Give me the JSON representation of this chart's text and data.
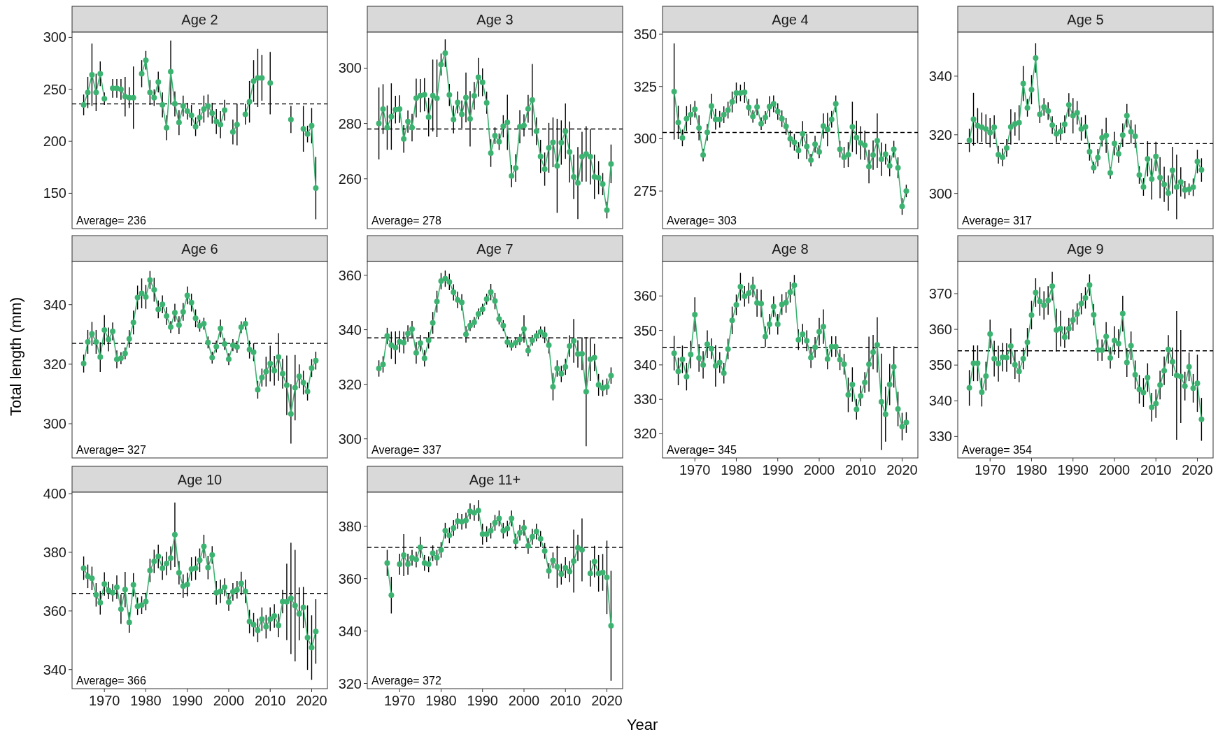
{
  "chart_data": [
    {
      "type": "line",
      "title": "Age 2",
      "color": "#3cb371",
      "marker": "circle",
      "tick_labels": "y",
      "xlim": [
        1962.2,
        2023.8
      ],
      "ylim": [
        116,
        305
      ],
      "yticks": [
        150,
        200,
        250,
        300
      ],
      "ref_lines": [
        {
          "axis": "y",
          "value": 236,
          "color": "#000000",
          "line_style": "dashed"
        }
      ],
      "annotations": [
        "Average= 236"
      ],
      "x": [
        1965,
        1966,
        1967,
        1968,
        1969,
        1970,
        1971,
        1972,
        1973,
        1974,
        1975,
        1976,
        1977,
        1978,
        1979,
        1980,
        1981,
        1982,
        1983,
        1984,
        1985,
        1986,
        1987,
        1988,
        1989,
        1990,
        1991,
        1992,
        1993,
        1994,
        1995,
        1996,
        1997,
        1998,
        1999,
        2000,
        2001,
        2002,
        2003,
        2004,
        2005,
        2006,
        2007,
        2008,
        2009,
        2010,
        2011,
        2012,
        2013,
        2014,
        2015,
        2016,
        2017,
        2018,
        2019,
        2020,
        2021
      ],
      "values": [
        235,
        247,
        264,
        247,
        265,
        241,
        null,
        251,
        251,
        250,
        243,
        242,
        242,
        null,
        265,
        278,
        247,
        242,
        257,
        235,
        213,
        267,
        236,
        218,
        234,
        229,
        225,
        214,
        223,
        231,
        234,
        227,
        219,
        216,
        230,
        null,
        209,
        216,
        null,
        226,
        238,
        258,
        261,
        261,
        null,
        256,
        null,
        null,
        null,
        null,
        221,
        null,
        null,
        212,
        207,
        215,
        155
      ],
      "errors": [
        10,
        15,
        30,
        18,
        12,
        6,
        null,
        9,
        9,
        10,
        19,
        10,
        30,
        null,
        13,
        9,
        12,
        8,
        10,
        12,
        12,
        30,
        12,
        12,
        10,
        8,
        10,
        9,
        8,
        13,
        11,
        10,
        12,
        13,
        10,
        null,
        12,
        20,
        null,
        10,
        20,
        20,
        28,
        22,
        null,
        30,
        null,
        null,
        null,
        null,
        13,
        null,
        null,
        22,
        8,
        17,
        30
      ]
    },
    {
      "type": "line",
      "title": "Age 3",
      "color": "#3cb371",
      "marker": "circle",
      "tick_labels": "y",
      "xlim": [
        1962.2,
        2023.8
      ],
      "ylim": [
        242,
        313
      ],
      "yticks": [
        260,
        280,
        300
      ],
      "ref_lines": [
        {
          "axis": "y",
          "value": 278,
          "color": "#000000",
          "line_style": "dashed"
        }
      ],
      "annotations": [
        "Average= 278"
      ],
      "x": [
        1965,
        1966,
        1967,
        1968,
        1969,
        1970,
        1971,
        1972,
        1973,
        1974,
        1975,
        1976,
        1977,
        1978,
        1979,
        1980,
        1981,
        1982,
        1983,
        1984,
        1985,
        1986,
        1987,
        1988,
        1989,
        1990,
        1991,
        1992,
        1993,
        1994,
        1995,
        1996,
        1997,
        1998,
        1999,
        2000,
        2001,
        2002,
        2003,
        2004,
        2005,
        2006,
        2007,
        2008,
        2009,
        2010,
        2011,
        2012,
        2013,
        2014,
        2015,
        2016,
        2017,
        2018,
        2019,
        2020,
        2021
      ],
      "values": [
        280,
        285.2,
        278.5,
        282.5,
        285,
        285.2,
        274.4,
        280.7,
        278.5,
        289.2,
        290.1,
        290.4,
        282.3,
        290.1,
        289.1,
        301.3,
        305.4,
        290.3,
        281.4,
        287.6,
        283.3,
        289.4,
        281.7,
        290,
        296.7,
        294.9,
        287.5,
        269.3,
        275.6,
        273.4,
        279,
        280.4,
        261,
        263.9,
        278.8,
        279.3,
        285.3,
        288.5,
        277.2,
        268.1,
        263.5,
        271.2,
        273.2,
        264.7,
        273.1,
        277.2,
        269.7,
        260.7,
        258.5,
        268,
        269,
        268,
        260.7,
        260.4,
        258.1,
        248.7,
        265.4
      ],
      "errors": [
        13,
        9,
        8,
        12,
        5,
        5,
        5,
        4,
        5,
        7,
        6,
        6,
        7,
        13,
        14,
        4,
        5,
        4,
        5,
        4,
        5,
        9,
        10,
        5,
        7,
        5,
        4,
        5,
        3,
        3,
        4,
        10,
        4,
        5,
        6,
        4,
        5,
        13,
        5,
        6,
        6,
        9,
        9,
        17,
        8,
        10,
        11,
        8,
        13,
        9,
        10,
        10,
        8,
        6,
        4,
        3,
        7
      ]
    },
    {
      "type": "line",
      "title": "Age 4",
      "color": "#3cb371",
      "marker": "circle",
      "tick_labels": "y",
      "xlim": [
        1962.2,
        2023.8
      ],
      "ylim": [
        257,
        351
      ],
      "yticks": [
        275,
        300,
        325,
        350
      ],
      "ref_lines": [
        {
          "axis": "y",
          "value": 303,
          "color": "#000000",
          "line_style": "dashed"
        }
      ],
      "annotations": [
        "Average= 303"
      ],
      "x": [
        1965,
        1966,
        1967,
        1968,
        1969,
        1970,
        1971,
        1972,
        1973,
        1974,
        1975,
        1976,
        1977,
        1978,
        1979,
        1980,
        1981,
        1982,
        1983,
        1984,
        1985,
        1986,
        1987,
        1988,
        1989,
        1990,
        1991,
        1992,
        1993,
        1994,
        1995,
        1996,
        1997,
        1998,
        1999,
        2000,
        2001,
        2002,
        2003,
        2004,
        2005,
        2006,
        2007,
        2008,
        2009,
        2010,
        2011,
        2012,
        2013,
        2014,
        2015,
        2016,
        2017,
        2018,
        2019,
        2020,
        2021
      ],
      "values": [
        322.6,
        307.8,
        300.4,
        309.6,
        311.5,
        314.1,
        305.2,
        292.2,
        303.1,
        315.6,
        309.3,
        309.3,
        311.5,
        313.7,
        317.6,
        321.9,
        321.9,
        322.2,
        315,
        310.7,
        315.2,
        307.2,
        310.2,
        315.4,
        316.7,
        313,
        309.6,
        305.9,
        300,
        298.3,
        294.4,
        302.4,
        296.3,
        289.8,
        297.4,
        293.7,
        306.1,
        304.4,
        309.3,
        316.7,
        295,
        291.1,
        292.4,
        305.7,
        300.6,
        298,
        296.9,
        286.7,
        292.2,
        299.1,
        290.2,
        292.6,
        287,
        295,
        286.1,
        267.6,
        275
      ],
      "errors": [
        23,
        8,
        4,
        6,
        5,
        4,
        6,
        3,
        4,
        6,
        5,
        4,
        4,
        4,
        5,
        5,
        4,
        5,
        4,
        3,
        4,
        3,
        3,
        5,
        4,
        4,
        4,
        4,
        4,
        4,
        4,
        6,
        6,
        3,
        4,
        3,
        6,
        8,
        4,
        4,
        4,
        5,
        6,
        12,
        8,
        8,
        7,
        8,
        7,
        13,
        8,
        5,
        5,
        4,
        5,
        4,
        3
      ]
    },
    {
      "type": "line",
      "title": "Age 5",
      "color": "#3cb371",
      "marker": "circle",
      "tick_labels": "y",
      "xlim": [
        1962.2,
        2023.8
      ],
      "ylim": [
        288,
        355
      ],
      "yticks": [
        300,
        320,
        340
      ],
      "ref_lines": [
        {
          "axis": "y",
          "value": 317,
          "color": "#000000",
          "line_style": "dashed"
        }
      ],
      "annotations": [
        "Average= 317"
      ],
      "x": [
        1965,
        1966,
        1967,
        1968,
        1969,
        1970,
        1971,
        1972,
        1973,
        1974,
        1975,
        1976,
        1977,
        1978,
        1979,
        1980,
        1981,
        1982,
        1983,
        1984,
        1985,
        1986,
        1987,
        1988,
        1989,
        1990,
        1991,
        1992,
        1993,
        1994,
        1995,
        1996,
        1997,
        1998,
        1999,
        2000,
        2001,
        2002,
        2003,
        2004,
        2005,
        2006,
        2007,
        2008,
        2009,
        2010,
        2011,
        2012,
        2013,
        2014,
        2015,
        2016,
        2017,
        2018,
        2019,
        2020,
        2021
      ],
      "values": [
        318.1,
        325.3,
        323.1,
        322.6,
        322,
        320.7,
        322.6,
        313.2,
        312.3,
        315.5,
        322.7,
        323.7,
        324.1,
        337.5,
        329.2,
        335.4,
        346.2,
        327,
        329.5,
        328.1,
        323.3,
        320.3,
        321.1,
        323.6,
        330.2,
        326.5,
        327.5,
        322,
        322.7,
        314.2,
        308.8,
        312.2,
        319,
        319.8,
        307,
        317,
        313.5,
        319.9,
        326.5,
        321,
        319.5,
        306.3,
        302.2,
        311.8,
        304.9,
        312.6,
        305.4,
        303.1,
        300.1,
        307.9,
        302.2,
        303.9,
        301.2,
        301.4,
        302.1,
        310.9,
        308
      ],
      "errors": [
        4,
        9,
        6,
        5,
        5,
        5,
        4,
        3,
        3,
        3,
        6,
        4,
        6,
        6,
        3,
        5,
        5,
        3,
        3,
        3,
        3,
        3,
        3,
        3,
        4,
        6,
        4,
        4,
        4,
        3,
        2,
        3,
        3,
        6,
        2,
        4,
        3,
        4,
        4,
        4,
        4,
        3,
        3,
        6,
        7,
        5,
        7,
        6,
        6,
        8,
        11,
        5,
        3,
        2,
        3,
        4,
        4
      ]
    },
    {
      "type": "line",
      "title": "Age 6",
      "ylabel": "Total length (mm)",
      "color": "#3cb371",
      "marker": "circle",
      "tick_labels": "y",
      "xlim": [
        1962.2,
        2023.8
      ],
      "ylim": [
        288.5,
        354.5
      ],
      "yticks": [
        300,
        320,
        340
      ],
      "ref_lines": [
        {
          "axis": "y",
          "value": 327,
          "color": "#000000",
          "line_style": "dashed"
        }
      ],
      "annotations": [
        "Average= 327"
      ],
      "x": [
        1965,
        1966,
        1967,
        1968,
        1969,
        1970,
        1971,
        1972,
        1973,
        1974,
        1975,
        1976,
        1977,
        1978,
        1979,
        1980,
        1981,
        1982,
        1983,
        1984,
        1985,
        1986,
        1987,
        1988,
        1989,
        1990,
        1991,
        1992,
        1993,
        1994,
        1995,
        1996,
        1997,
        1998,
        1999,
        2000,
        2001,
        2002,
        2003,
        2004,
        2005,
        2006,
        2007,
        2008,
        2009,
        2010,
        2011,
        2012,
        2013,
        2014,
        2015,
        2016,
        2017,
        2018,
        2019,
        2020,
        2021
      ],
      "values": [
        320.2,
        327.5,
        330.2,
        327.5,
        322.4,
        331.5,
        328.3,
        331,
        321.6,
        322,
        323.6,
        328.5,
        334,
        342.4,
        343.8,
        342.6,
        348.3,
        345,
        338.4,
        340.1,
        336.2,
        332.5,
        337.3,
        333.1,
        337.6,
        343.1,
        340.7,
        335.4,
        332.9,
        333.6,
        327.3,
        322.2,
        325.9,
        332,
        326.8,
        321.7,
        326.4,
        325.8,
        332.4,
        333.6,
        324.9,
        324,
        311.4,
        315.5,
        317.5,
        320.2,
        317.8,
        322.4,
        316.8,
        312.9,
        303.3,
        312.1,
        315.9,
        313.8,
        310.8,
        318.7,
        321.2
      ],
      "errors": [
        3,
        4,
        4,
        4,
        5,
        5,
        4,
        3,
        3,
        2,
        2,
        3,
        4,
        4,
        5,
        4,
        3,
        4,
        3,
        3,
        3,
        2,
        3,
        3,
        3,
        3,
        3,
        3,
        2,
        2,
        2,
        2,
        2,
        3,
        2,
        2,
        2,
        2,
        2,
        2,
        3,
        3,
        3,
        3,
        5,
        6,
        5,
        8,
        5,
        10,
        10,
        11,
        4,
        4,
        3,
        3,
        3
      ]
    },
    {
      "type": "line",
      "title": "Age 7",
      "color": "#3cb371",
      "marker": "circle",
      "tick_labels": "y",
      "xlim": [
        1962.2,
        2023.8
      ],
      "ylim": [
        293,
        365
      ],
      "yticks": [
        300,
        320,
        340,
        360
      ],
      "ref_lines": [
        {
          "axis": "y",
          "value": 337,
          "color": "#000000",
          "line_style": "dashed"
        }
      ],
      "annotations": [
        "Average= 337"
      ],
      "x": [
        1965,
        1966,
        1967,
        1968,
        1969,
        1970,
        1971,
        1972,
        1973,
        1974,
        1975,
        1976,
        1977,
        1978,
        1979,
        1980,
        1981,
        1982,
        1983,
        1984,
        1985,
        1986,
        1987,
        1988,
        1989,
        1990,
        1991,
        1992,
        1993,
        1994,
        1995,
        1996,
        1997,
        1998,
        1999,
        2000,
        2001,
        2002,
        2003,
        2004,
        2005,
        2006,
        2007,
        2008,
        2009,
        2010,
        2011,
        2012,
        2013,
        2014,
        2015,
        2016,
        2017,
        2018,
        2019,
        2020,
        2021
      ],
      "values": [
        325.8,
        327.3,
        337.7,
        334.3,
        333.4,
        335.6,
        335.3,
        338.6,
        340.2,
        331.5,
        335.1,
        329.5,
        336.1,
        342.5,
        350.3,
        357.8,
        358.7,
        357.5,
        353.7,
        350.9,
        350,
        338.3,
        341.5,
        342.7,
        345.8,
        347.5,
        351.2,
        353.8,
        350.5,
        343.9,
        341.5,
        335.5,
        334.3,
        335.2,
        336.4,
        340.3,
        332.3,
        336.1,
        337.7,
        339.2,
        338.1,
        334.3,
        319.1,
        325.8,
        323.8,
        326.4,
        334,
        335.9,
        331.1,
        331.2,
        317.3,
        329.2,
        329.8,
        319.8,
        318.6,
        319.1,
        323.2
      ],
      "errors": [
        3,
        3,
        3,
        5,
        6,
        4,
        4,
        3,
        3,
        4,
        3,
        3,
        3,
        4,
        4,
        3,
        3,
        3,
        3,
        3,
        3,
        3,
        2,
        2,
        2,
        2,
        2,
        3,
        3,
        2,
        2,
        2,
        2,
        2,
        2,
        5,
        2,
        2,
        2,
        2,
        3,
        3,
        5,
        3,
        3,
        3,
        4,
        8,
        5,
        6,
        20,
        8,
        5,
        4,
        3,
        3,
        3
      ]
    },
    {
      "type": "line",
      "title": "Age 8",
      "color": "#3cb371",
      "marker": "circle",
      "xlim": [
        1962.2,
        2023.8
      ],
      "xticks": [
        1970,
        1980,
        1990,
        2000,
        2010,
        2020
      ],
      "ylim": [
        313,
        370
      ],
      "yticks": [
        320,
        330,
        340,
        350,
        360
      ],
      "ref_lines": [
        {
          "axis": "y",
          "value": 345,
          "color": "#000000",
          "line_style": "dashed"
        }
      ],
      "annotations": [
        "Average= 345"
      ],
      "x": [
        1965,
        1966,
        1967,
        1968,
        1969,
        1970,
        1971,
        1972,
        1973,
        1974,
        1975,
        1976,
        1977,
        1978,
        1979,
        1980,
        1981,
        1982,
        1983,
        1984,
        1985,
        1986,
        1987,
        1988,
        1989,
        1990,
        1991,
        1992,
        1993,
        1994,
        1995,
        1996,
        1997,
        1998,
        1999,
        2000,
        2001,
        2002,
        2003,
        2004,
        2005,
        2006,
        2007,
        2008,
        2009,
        2010,
        2011,
        2012,
        2013,
        2014,
        2015,
        2016,
        2017,
        2018,
        2019,
        2020,
        2021
      ],
      "values": [
        343.4,
        338.1,
        341.6,
        336.6,
        343,
        354.6,
        342,
        340,
        346,
        344.7,
        339.7,
        340.7,
        337.6,
        344.6,
        352.9,
        357.4,
        362.7,
        359.9,
        360.8,
        362.6,
        358,
        357.8,
        348.2,
        351.8,
        356.9,
        351.8,
        357.5,
        358.1,
        361.1,
        363.1,
        347.3,
        348.9,
        347,
        342.1,
        345.1,
        349.6,
        351.1,
        341.7,
        345.3,
        345.3,
        341.5,
        340.2,
        331.3,
        334.3,
        327.1,
        331,
        334.9,
        340.2,
        343.7,
        345.8,
        329.3,
        325.7,
        334.3,
        339.4,
        327.2,
        322.1,
        323.3
      ],
      "errors": [
        5,
        4,
        4,
        4,
        4,
        5,
        4,
        4,
        4,
        3,
        6,
        3,
        3,
        3,
        4,
        3,
        4,
        3,
        3,
        3,
        4,
        4,
        3,
        3,
        3,
        3,
        3,
        3,
        3,
        3,
        3,
        3,
        3,
        3,
        3,
        4,
        5,
        3,
        3,
        3,
        3,
        3,
        5,
        5,
        3,
        3,
        3,
        8,
        5,
        8,
        14,
        8,
        6,
        6,
        5,
        4,
        3
      ]
    },
    {
      "type": "line",
      "title": "Age 9",
      "color": "#3cb371",
      "marker": "circle",
      "xlim": [
        1962.2,
        2023.8
      ],
      "xticks": [
        1970,
        1980,
        1990,
        2000,
        2010,
        2020
      ],
      "ylim": [
        324,
        379
      ],
      "yticks": [
        330,
        340,
        350,
        360,
        370
      ],
      "ref_lines": [
        {
          "axis": "y",
          "value": 354,
          "color": "#000000",
          "line_style": "dashed"
        }
      ],
      "annotations": [
        "Average= 354"
      ],
      "x": [
        1965,
        1966,
        1967,
        1968,
        1969,
        1970,
        1971,
        1972,
        1973,
        1974,
        1975,
        1976,
        1977,
        1978,
        1979,
        1980,
        1981,
        1982,
        1983,
        1984,
        1985,
        1986,
        1987,
        1988,
        1989,
        1990,
        1991,
        1992,
        1993,
        1994,
        1995,
        1996,
        1997,
        1998,
        1999,
        2000,
        2001,
        2002,
        2003,
        2004,
        2005,
        2006,
        2007,
        2008,
        2009,
        2010,
        2011,
        2012,
        2013,
        2014,
        2015,
        2016,
        2017,
        2018,
        2019,
        2020,
        2021
      ],
      "values": [
        343.6,
        350.5,
        350.5,
        342.4,
        346.9,
        358.7,
        351.8,
        350.4,
        352.2,
        352.1,
        355.3,
        350.1,
        348.2,
        351.8,
        356.4,
        364,
        370.3,
        367.8,
        366.7,
        368.1,
        372.1,
        359.8,
        360.2,
        357.8,
        360.2,
        362.6,
        364.3,
        367.2,
        368.8,
        372.4,
        364.1,
        354.2,
        354.2,
        358,
        352,
        356.9,
        356,
        364.4,
        350.7,
        355.4,
        347.3,
        343.2,
        342.3,
        346.5,
        338.2,
        339.2,
        344.4,
        348.4,
        354.4,
        350.9,
        347.1,
        346.8,
        344.1,
        349.5,
        343.5,
        344.9,
        334.8
      ],
      "errors": [
        5,
        5,
        5,
        4,
        4,
        4,
        5,
        5,
        4,
        4,
        5,
        4,
        3,
        3,
        4,
        4,
        4,
        4,
        4,
        4,
        4,
        6,
        5,
        3,
        3,
        3,
        3,
        3,
        3,
        3,
        3,
        3,
        3,
        4,
        3,
        4,
        4,
        5,
        4,
        4,
        4,
        4,
        4,
        4,
        4,
        4,
        4,
        4,
        4,
        4,
        18,
        13,
        4,
        4,
        4,
        8,
        6
      ]
    },
    {
      "type": "line",
      "title": "Age 10",
      "color": "#3cb371",
      "marker": "circle",
      "xlim": [
        1962.2,
        2023.8
      ],
      "xticks": [
        1970,
        1980,
        1990,
        2000,
        2010,
        2020
      ],
      "ylim": [
        333.5,
        400.5
      ],
      "yticks": [
        340,
        360,
        380,
        400
      ],
      "ref_lines": [
        {
          "axis": "y",
          "value": 366,
          "color": "#000000",
          "line_style": "dashed"
        }
      ],
      "annotations": [
        "Average= 366"
      ],
      "x": [
        1965,
        1966,
        1967,
        1968,
        1969,
        1970,
        1971,
        1972,
        1973,
        1974,
        1975,
        1976,
        1977,
        1978,
        1979,
        1980,
        1981,
        1982,
        1983,
        1984,
        1985,
        1986,
        1987,
        1988,
        1989,
        1990,
        1991,
        1992,
        1993,
        1994,
        1995,
        1996,
        1997,
        1998,
        1999,
        2000,
        2001,
        2002,
        2003,
        2004,
        2005,
        2006,
        2007,
        2008,
        2009,
        2010,
        2011,
        2012,
        2013,
        2014,
        2015,
        2016,
        2017,
        2018,
        2019,
        2020,
        2021
      ],
      "values": [
        374.6,
        371.8,
        371.1,
        365.5,
        362.8,
        369.2,
        367,
        366.2,
        368.1,
        360.6,
        367.3,
        356.1,
        368.9,
        361.6,
        362,
        363.2,
        373.8,
        376.9,
        378.6,
        374.6,
        376.2,
        378,
        386,
        373,
        368.5,
        369,
        374.3,
        374.6,
        377.3,
        382,
        374.8,
        379.1,
        366.2,
        366.7,
        368.1,
        363,
        366.5,
        367.2,
        369.4,
        366.7,
        356.4,
        355.3,
        353.4,
        357.2,
        354.6,
        357.2,
        358.3,
        355.1,
        363.2,
        363.1,
        364.3,
        361.8,
        359,
        361.2,
        350.9,
        347.5,
        353
      ],
      "errors": [
        4,
        4,
        4,
        4,
        4,
        4,
        3,
        3,
        4,
        5,
        6,
        3.5,
        4,
        3,
        3,
        3,
        4,
        4,
        4,
        4,
        4,
        4,
        11,
        4,
        4,
        4,
        4,
        4,
        4,
        4,
        4,
        3,
        4,
        4,
        3,
        3,
        3,
        3,
        4,
        4,
        4,
        4,
        4,
        4,
        4,
        4,
        4,
        4,
        4,
        13,
        19,
        19,
        9,
        7,
        11,
        11,
        11
      ]
    },
    {
      "type": "line",
      "title": "Age 11+",
      "xlabel": "Year",
      "color": "#3cb371",
      "marker": "circle",
      "xlim": [
        1962.2,
        2023.8
      ],
      "xticks": [
        1970,
        1980,
        1990,
        2000,
        2010,
        2020
      ],
      "ylim": [
        318,
        393
      ],
      "yticks": [
        320,
        340,
        360,
        380
      ],
      "ref_lines": [
        {
          "axis": "y",
          "value": 372,
          "color": "#000000",
          "line_style": "dashed"
        }
      ],
      "annotations": [
        "Average= 372"
      ],
      "x": [
        1967,
        1968,
        1969,
        1970,
        1971,
        1972,
        1973,
        1974,
        1975,
        1976,
        1977,
        1978,
        1979,
        1980,
        1981,
        1982,
        1983,
        1984,
        1985,
        1986,
        1987,
        1988,
        1989,
        1990,
        1991,
        1992,
        1993,
        1994,
        1995,
        1996,
        1997,
        1998,
        1999,
        2000,
        2001,
        2002,
        2003,
        2004,
        2005,
        2006,
        2007,
        2008,
        2009,
        2010,
        2011,
        2012,
        2013,
        2014,
        2015,
        2016,
        2017,
        2018,
        2019,
        2020,
        2021
      ],
      "values": [
        366,
        353.7,
        null,
        365.5,
        369,
        365.5,
        368,
        367.3,
        372,
        366,
        365.5,
        369.7,
        368,
        371,
        378.3,
        376.5,
        379.3,
        382,
        381.7,
        382.2,
        385.7,
        385.1,
        386,
        377,
        377,
        378.3,
        381.3,
        383,
        378.3,
        379.1,
        383,
        374.2,
        377.5,
        379.4,
        372.5,
        376,
        378,
        375.2,
        370.6,
        363,
        367,
        364.5,
        361.7,
        364.2,
        362.7,
        366.7,
        371.8,
        371,
        null,
        362,
        366.5,
        362,
        362.4,
        360.5,
        342
      ],
      "errors": [
        5,
        7,
        null,
        4,
        8,
        4,
        3,
        3,
        4,
        3,
        3,
        3,
        3,
        3,
        3,
        3,
        3,
        3,
        3,
        3,
        3,
        3,
        4,
        4,
        3,
        3,
        3,
        3,
        3,
        3,
        3,
        3,
        3,
        3,
        3,
        3,
        3,
        3,
        3,
        3,
        3,
        8,
        4,
        4,
        4,
        12,
        5,
        12,
        null,
        5,
        6,
        7,
        7,
        14,
        21
      ]
    }
  ]
}
